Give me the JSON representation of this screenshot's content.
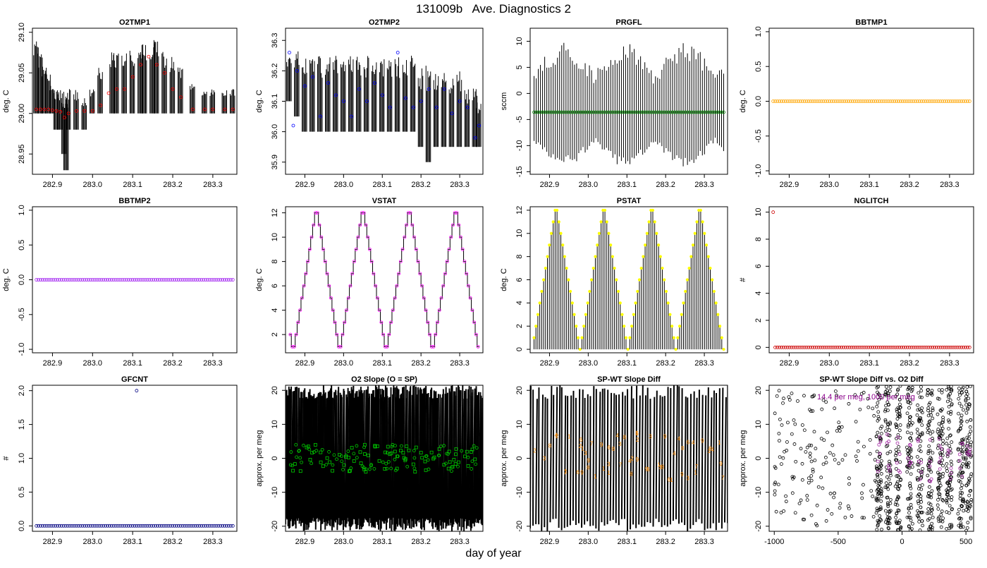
{
  "figure": {
    "title": "131009b   Ave. Diagnostics 2",
    "xlabel": "day of year"
  },
  "chart_data": [
    {
      "id": "o2tmp1",
      "type": "line",
      "title": "O2TMP1",
      "ylabel": "deg. C",
      "xlim": [
        282.85,
        283.36
      ],
      "ylim": [
        28.925,
        29.105
      ],
      "xticks": [
        "282.9",
        "283.0",
        "283.1",
        "283.2",
        "283.3"
      ],
      "yticks": [
        "28.95",
        "29.00",
        "29.05",
        "29.10"
      ],
      "marker_color": "#ff0000",
      "marker": "circle",
      "series": [
        {
          "kind": "spikes",
          "x": [
            282.86,
            282.87,
            282.88,
            282.89,
            282.9,
            282.91,
            282.92,
            282.93,
            282.935,
            282.94,
            282.96,
            282.98,
            283.0,
            283.02,
            283.05,
            283.06,
            283.08,
            283.1,
            283.12,
            283.13,
            283.15,
            283.16,
            283.18,
            283.2,
            283.22,
            283.25,
            283.28,
            283.3,
            283.33,
            283.35
          ],
          "low": [
            29.0,
            29.0,
            29.0,
            29.0,
            29.0,
            28.98,
            28.98,
            28.95,
            28.93,
            28.98,
            28.98,
            28.98,
            29.0,
            29.0,
            29.0,
            29.0,
            29.0,
            29.0,
            29.0,
            29.0,
            29.0,
            29.0,
            29.0,
            29.0,
            29.0,
            29.0,
            29.0,
            29.0,
            29.0,
            29.0
          ],
          "high": [
            29.1,
            29.08,
            29.06,
            29.05,
            29.04,
            29.03,
            29.03,
            29.02,
            29.03,
            29.03,
            29.03,
            29.02,
            29.03,
            29.06,
            29.08,
            29.08,
            29.08,
            29.08,
            29.08,
            29.09,
            29.09,
            29.1,
            29.08,
            29.07,
            29.06,
            29.04,
            29.03,
            29.03,
            29.03,
            29.03
          ]
        },
        {
          "kind": "points",
          "x": [
            282.86,
            282.87,
            282.88,
            282.89,
            282.9,
            282.91,
            282.92,
            282.93,
            282.94,
            282.96,
            282.98,
            283.0,
            283.02,
            283.04,
            283.06,
            283.08,
            283.1,
            283.12,
            283.14,
            283.16,
            283.18,
            283.2,
            283.22,
            283.25,
            283.28,
            283.3,
            283.33,
            283.35
          ],
          "y": [
            29.005,
            29.005,
            29.005,
            29.005,
            29.004,
            29.003,
            29.002,
            28.995,
            29.0,
            29.003,
            29.003,
            29.003,
            29.01,
            29.025,
            29.03,
            29.03,
            29.045,
            29.06,
            29.07,
            29.06,
            29.05,
            29.03,
            29.02,
            29.005,
            29.005,
            29.005,
            29.005,
            29.005
          ]
        }
      ]
    },
    {
      "id": "o2tmp2",
      "type": "line",
      "title": "O2TMP2",
      "ylabel": "deg. C",
      "xlim": [
        282.85,
        283.36
      ],
      "ylim": [
        35.86,
        36.34
      ],
      "xticks": [
        "282.9",
        "283.0",
        "283.1",
        "283.2",
        "283.3"
      ],
      "yticks": [
        "35.9",
        "36.0",
        "36.1",
        "36.2",
        "36.3"
      ],
      "marker_color": "#0000ff",
      "marker": "circle",
      "series": [
        {
          "kind": "spikes",
          "x": [
            282.86,
            282.88,
            282.9,
            282.92,
            282.94,
            282.96,
            282.98,
            283.0,
            283.02,
            283.04,
            283.06,
            283.08,
            283.1,
            283.12,
            283.14,
            283.16,
            283.18,
            283.2,
            283.22,
            283.24,
            283.26,
            283.28,
            283.3,
            283.32,
            283.34,
            283.35
          ],
          "low": [
            36.1,
            36.05,
            36.0,
            36.0,
            36.0,
            36.0,
            36.0,
            36.0,
            36.0,
            36.0,
            36.0,
            36.0,
            36.0,
            36.0,
            36.0,
            36.0,
            36.0,
            35.95,
            35.9,
            35.95,
            35.95,
            35.95,
            35.95,
            35.95,
            35.95,
            35.95
          ],
          "high": [
            36.25,
            36.28,
            36.25,
            36.25,
            36.25,
            36.25,
            36.25,
            36.25,
            36.25,
            36.25,
            36.25,
            36.25,
            36.25,
            36.25,
            36.25,
            36.25,
            36.25,
            36.22,
            36.22,
            36.2,
            36.2,
            36.2,
            36.2,
            36.15,
            36.15,
            36.1
          ]
        },
        {
          "kind": "points",
          "x": [
            282.86,
            282.87,
            282.88,
            282.9,
            282.92,
            282.94,
            282.96,
            282.98,
            283.0,
            283.02,
            283.04,
            283.06,
            283.08,
            283.1,
            283.12,
            283.14,
            283.16,
            283.18,
            283.2,
            283.22,
            283.24,
            283.26,
            283.28,
            283.3,
            283.32,
            283.34,
            283.35
          ],
          "y": [
            36.26,
            36.02,
            36.2,
            36.15,
            36.18,
            36.05,
            36.16,
            36.12,
            36.1,
            36.05,
            36.14,
            36.1,
            36.16,
            36.12,
            36.08,
            36.26,
            36.11,
            36.08,
            36.1,
            36.14,
            36.08,
            36.14,
            36.06,
            36.1,
            36.08,
            35.98,
            36.02
          ]
        }
      ]
    },
    {
      "id": "prgfl",
      "type": "line",
      "title": "PRGFL",
      "ylabel": "sccm",
      "xlim": [
        282.85,
        283.36
      ],
      "ylim": [
        -15.5,
        12.5
      ],
      "xticks": [
        "282.9",
        "283.0",
        "283.1",
        "283.2",
        "283.3"
      ],
      "yticks": [
        "-15",
        "-10",
        "-5",
        "0",
        "5",
        "10"
      ],
      "marker_color": "#008000",
      "marker": "circle",
      "series": [
        {
          "kind": "oscillation",
          "x_start": 282.86,
          "x_end": 283.35,
          "count": 90,
          "low": -14,
          "high": 10
        },
        {
          "kind": "flat-points",
          "x_start": 282.86,
          "x_end": 283.35,
          "count": 90,
          "y": -3.6
        }
      ]
    },
    {
      "id": "bbtmp1",
      "type": "scatter",
      "title": "BBTMP1",
      "ylabel": "deg. C",
      "xlim": [
        282.85,
        283.36
      ],
      "ylim": [
        -1.05,
        1.05
      ],
      "xticks": [
        "282.9",
        "283.0",
        "283.1",
        "283.2",
        "283.3"
      ],
      "yticks": [
        "-1.0",
        "-0.5",
        "0.0",
        "0.5",
        "1.0"
      ],
      "marker_color": "#ffa500",
      "marker": "circle",
      "series": [
        {
          "kind": "flat-points",
          "x_start": 282.86,
          "x_end": 283.35,
          "count": 95,
          "y": 0
        }
      ]
    },
    {
      "id": "bbtmp2",
      "type": "scatter",
      "title": "BBTMP2",
      "ylabel": "deg. C",
      "xlim": [
        282.85,
        283.36
      ],
      "ylim": [
        -1.05,
        1.05
      ],
      "xticks": [
        "282.9",
        "283.0",
        "283.1",
        "283.2",
        "283.3"
      ],
      "yticks": [
        "-1.0",
        "-0.5",
        "0.0",
        "0.5",
        "1.0"
      ],
      "marker_color": "#a020f0",
      "marker": "circle",
      "series": [
        {
          "kind": "flat-points",
          "x_start": 282.86,
          "x_end": 283.35,
          "count": 95,
          "y": 0
        }
      ]
    },
    {
      "id": "vstat",
      "type": "line",
      "title": "VSTAT",
      "ylabel": "deg. C",
      "xlim": [
        282.85,
        283.36
      ],
      "ylim": [
        0.5,
        12.5
      ],
      "xticks": [
        "282.9",
        "283.0",
        "283.1",
        "283.2",
        "283.3"
      ],
      "yticks": [
        "2",
        "4",
        "6",
        "8",
        "10",
        "12"
      ],
      "marker_color": "#ff00ff",
      "marker": "circle",
      "series": [
        {
          "kind": "staircase",
          "x_start": 282.86,
          "x_end": 283.35,
          "steps": [
            2,
            1,
            1,
            2,
            3,
            4,
            5,
            6,
            7,
            8,
            9,
            10,
            11,
            12,
            12,
            11,
            10,
            9,
            8,
            7,
            6,
            5,
            4,
            3,
            2,
            1,
            1,
            2,
            3,
            4,
            5,
            6,
            7,
            8,
            9,
            10,
            11,
            12,
            12,
            11,
            10,
            9,
            8,
            7,
            6,
            5,
            4,
            3,
            2,
            1,
            1,
            2,
            3,
            4,
            5,
            6,
            7,
            8,
            9,
            10,
            11,
            12,
            12,
            11,
            10,
            9,
            8,
            7,
            6,
            5,
            4,
            3,
            2,
            1,
            1,
            2,
            3,
            4,
            5,
            6,
            7,
            8,
            9,
            10,
            11,
            12,
            12,
            11,
            10,
            9,
            8,
            7,
            6,
            5,
            4,
            3,
            2,
            1
          ]
        }
      ]
    },
    {
      "id": "pstat",
      "type": "bar",
      "title": "PSTAT",
      "ylabel": "deg. C",
      "xlim": [
        282.85,
        283.36
      ],
      "ylim": [
        -0.3,
        12.3
      ],
      "xticks": [
        "282.9",
        "283.0",
        "283.1",
        "283.2",
        "283.3"
      ],
      "yticks": [
        "0",
        "2",
        "4",
        "6",
        "8",
        "10",
        "12"
      ],
      "marker_color": "#ffff00",
      "marker": "circle",
      "series": [
        {
          "kind": "needles",
          "x_start": 282.86,
          "x_end": 283.35,
          "values": [
            1,
            2,
            3,
            4,
            5,
            6,
            7,
            8,
            9,
            10,
            11,
            12,
            12,
            11,
            10,
            9,
            8,
            7,
            6,
            5,
            4,
            3,
            2,
            1,
            0,
            1,
            2,
            3,
            4,
            5,
            6,
            7,
            8,
            9,
            10,
            11,
            12,
            12,
            11,
            10,
            9,
            8,
            7,
            6,
            5,
            4,
            3,
            2,
            1,
            0,
            1,
            2,
            3,
            4,
            5,
            6,
            7,
            8,
            9,
            10,
            11,
            12,
            12,
            11,
            10,
            9,
            8,
            7,
            6,
            5,
            4,
            3,
            2,
            1,
            0,
            1,
            2,
            3,
            4,
            5,
            6,
            7,
            8,
            9,
            10,
            11,
            12,
            12,
            11,
            10,
            9,
            8,
            7,
            6,
            5,
            4,
            3,
            2,
            1,
            0
          ]
        }
      ]
    },
    {
      "id": "nglitch",
      "type": "scatter",
      "title": "NGLITCH",
      "ylabel": "#",
      "xlim": [
        282.85,
        283.36
      ],
      "ylim": [
        -0.4,
        10.4
      ],
      "xticks": [
        "282.9",
        "283.0",
        "283.1",
        "283.2",
        "283.3"
      ],
      "yticks": [
        "0",
        "2",
        "4",
        "6",
        "8",
        "10"
      ],
      "marker_color": "#cc0000",
      "marker": "circle",
      "series": [
        {
          "kind": "points",
          "x": [
            282.86
          ],
          "y": [
            10
          ]
        },
        {
          "kind": "flat-points",
          "x_start": 282.865,
          "x_end": 283.35,
          "count": 95,
          "y": 0
        }
      ]
    },
    {
      "id": "gfcnt",
      "type": "scatter",
      "title": "GFCNT",
      "ylabel": "#",
      "xlim": [
        282.85,
        283.36
      ],
      "ylim": [
        -0.08,
        2.08
      ],
      "xticks": [
        "282.9",
        "283.0",
        "283.1",
        "283.2",
        "283.3"
      ],
      "yticks": [
        "0.0",
        "0.5",
        "1.0",
        "1.5",
        "2.0"
      ],
      "marker_color": "#000080",
      "marker": "circle",
      "series": [
        {
          "kind": "points",
          "x": [
            283.11
          ],
          "y": [
            2.0
          ]
        },
        {
          "kind": "flat-points",
          "x_start": 282.86,
          "x_end": 283.35,
          "count": 95,
          "y": 0
        }
      ]
    },
    {
      "id": "o2slope",
      "type": "scatter",
      "title": "O2 Slope (O = SP)",
      "ylabel": "approx. per meg",
      "xlim": [
        282.85,
        283.36
      ],
      "ylim": [
        -21.5,
        21.5
      ],
      "xticks": [
        "282.9",
        "283.0",
        "283.1",
        "283.2",
        "283.3"
      ],
      "yticks": [
        "-20",
        "-10",
        "0",
        "10",
        "20"
      ],
      "marker_color": "#00cc00",
      "marker": "circle-and-square",
      "series": [
        {
          "kind": "dense-band",
          "x_start": 282.85,
          "x_end": 283.36,
          "count": 230,
          "low": -21.5,
          "high": 21.5
        },
        {
          "kind": "noisy-points",
          "x_start": 282.86,
          "x_end": 283.35,
          "count": 150,
          "center": 0,
          "spread": 4
        }
      ]
    },
    {
      "id": "spwtslope",
      "type": "scatter",
      "title": "SP-WT Slope Diff",
      "ylabel": "approx. per meg",
      "xlim": [
        282.85,
        283.36
      ],
      "ylim": [
        -21.5,
        21.5
      ],
      "xticks": [
        "282.9",
        "283.0",
        "283.1",
        "283.2",
        "283.3"
      ],
      "yticks": [
        "-20",
        "-10",
        "0",
        "10",
        "20"
      ],
      "marker_color": "#ff8c00",
      "marker": "digit",
      "series": [
        {
          "kind": "dense-band",
          "x_start": 282.85,
          "x_end": 283.36,
          "count": 70,
          "low": -21.5,
          "high": 21.5
        },
        {
          "kind": "digits",
          "x_start": 282.86,
          "x_end": 283.35,
          "count": 60,
          "center": 0,
          "spread": 7
        }
      ]
    },
    {
      "id": "scatterdiff",
      "type": "scatter",
      "title": "SP-WT Slope Diff vs. O2 Diff",
      "ylabel": "approx. per meg",
      "xlim": [
        -1040,
        560
      ],
      "ylim": [
        -21.5,
        21.5
      ],
      "xticks": [
        "-1000",
        "-500",
        "0",
        "500"
      ],
      "xtick_values": [
        -1000,
        -500,
        0,
        500
      ],
      "yticks": [
        "-20",
        "-10",
        "0",
        "10",
        "20"
      ],
      "marker_color": "#000000",
      "marker": "circle",
      "annotation": "14.4 per meg, 1000 per meg",
      "annotation_color": "#8b008b",
      "series": [
        {
          "kind": "cloud",
          "x_min": -1000,
          "x_max": 540,
          "columns": [
            -180,
            -110,
            -30,
            60,
            140,
            220,
            300,
            370,
            460,
            520
          ],
          "count": 900
        }
      ]
    }
  ]
}
